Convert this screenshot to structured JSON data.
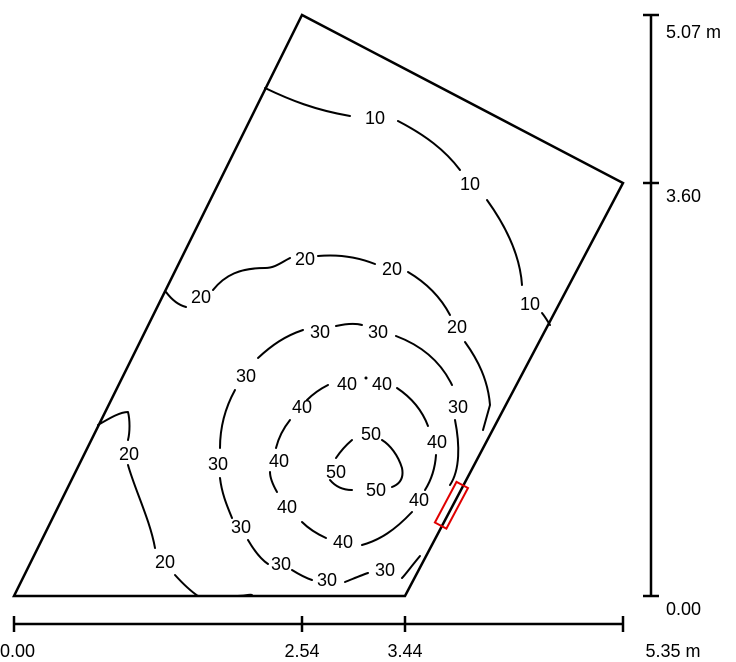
{
  "contour_values": [
    "10",
    "20",
    "30",
    "40",
    "50"
  ],
  "contour_labels": {
    "c10": [
      "10",
      "10",
      "10"
    ],
    "c20_main": [
      "20",
      "20",
      "20",
      "20"
    ],
    "c20_left": [
      "20",
      "20"
    ],
    "c30": [
      "30",
      "30",
      "30",
      "30",
      "30",
      "30",
      "30",
      "30",
      "30"
    ],
    "c40": [
      "40",
      "40",
      "40",
      "40",
      "40",
      "40",
      "40",
      "40"
    ],
    "c50": [
      "50",
      "50",
      "50"
    ]
  },
  "x_axis": {
    "ticks": [
      "0.00",
      "2.54",
      "3.44",
      "5.35 m"
    ]
  },
  "y_axis": {
    "ticks": [
      "0.00",
      "3.60",
      "5.07 m"
    ]
  },
  "colors": {
    "line": "#000000",
    "window": "#e00000",
    "background": "#ffffff"
  }
}
